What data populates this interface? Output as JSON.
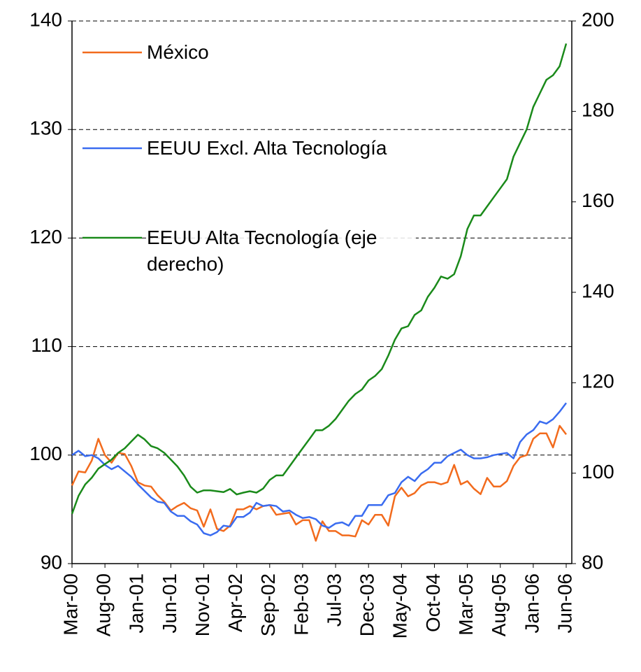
{
  "chart_data": {
    "type": "line",
    "categories": [
      "Mar-00",
      null,
      null,
      null,
      null,
      "Aug-00",
      null,
      null,
      null,
      null,
      "Jan-01",
      null,
      null,
      null,
      null,
      "Jun-01",
      null,
      null,
      null,
      null,
      "Nov-01",
      null,
      null,
      null,
      null,
      "Apr-02",
      null,
      null,
      null,
      null,
      "Sep-02",
      null,
      null,
      null,
      null,
      "Feb-03",
      null,
      null,
      null,
      null,
      "Jul-03",
      null,
      null,
      null,
      null,
      "Dec-03",
      null,
      null,
      null,
      null,
      "May-04",
      null,
      null,
      null,
      null,
      "Oct-04",
      null,
      null,
      null,
      null,
      "Mar-05",
      null,
      null,
      null,
      null,
      "Aug-05",
      null,
      null,
      null,
      null,
      "Jan-06",
      null,
      null,
      null,
      null,
      "Jun-06"
    ],
    "series": [
      {
        "name": "México",
        "color": "#f26b1d",
        "axis": "y",
        "values": [
          97.2,
          98.5,
          98.4,
          99.5,
          101.5,
          100,
          99.3,
          100.2,
          100.1,
          99,
          97.5,
          97.2,
          97.1,
          96.3,
          95.7,
          94.9,
          95.3,
          95.6,
          95.1,
          94.9,
          93.4,
          95,
          93.2,
          93,
          93.5,
          95,
          95,
          95.3,
          95,
          95.3,
          95.4,
          94.5,
          94.6,
          94.7,
          93.6,
          94,
          94,
          92.1,
          93.9,
          93,
          93,
          92.6,
          92.6,
          92.5,
          94,
          93.6,
          94.5,
          94.5,
          93.5,
          96.2,
          97,
          96.2,
          96.5,
          97.2,
          97.5,
          97.5,
          97.3,
          97.5,
          99.1,
          97.3,
          97.6,
          96.9,
          96.4,
          97.9,
          97.1,
          97.1,
          97.6,
          99,
          99.8,
          100,
          101.5,
          102,
          102,
          100.7,
          102.7,
          101.9
        ]
      },
      {
        "name": "EEUU Excl. Alta Tecnología",
        "color": "#3a6cf0",
        "axis": "y",
        "values": [
          100,
          100.4,
          99.9,
          100,
          99.7,
          99.1,
          98.7,
          99,
          98.5,
          98,
          97.3,
          96.7,
          96.1,
          95.7,
          95.6,
          94.8,
          94.4,
          94.4,
          93.9,
          93.6,
          92.8,
          92.6,
          92.9,
          93.5,
          93.4,
          94.3,
          94.3,
          94.7,
          95.6,
          95.3,
          95.4,
          95.3,
          94.8,
          94.9,
          94.5,
          94.2,
          94.3,
          94.1,
          93.5,
          93.3,
          93.7,
          93.8,
          93.5,
          94.4,
          94.4,
          95.4,
          95.4,
          95.4,
          96.3,
          96.5,
          97.5,
          98,
          97.6,
          98.3,
          98.7,
          99.3,
          99.3,
          99.9,
          100.2,
          100.5,
          100,
          99.7,
          99.7,
          99.8,
          100,
          100.1,
          100.2,
          99.7,
          101.2,
          101.9,
          102.3,
          103.1,
          102.9,
          103.3,
          104,
          104.8
        ]
      },
      {
        "name": "EEUU Alta Tecnología (eje derecho)",
        "color": "#1a8a1a",
        "axis": "y2",
        "values": [
          91,
          95,
          97.5,
          99,
          101,
          102,
          103,
          104.5,
          105.5,
          107,
          108.5,
          107.5,
          106,
          105.5,
          104.5,
          103,
          101.5,
          99.5,
          97,
          95.7,
          96.2,
          96.2,
          96,
          95.8,
          96.5,
          95.3,
          95.7,
          96,
          95.7,
          96.6,
          98.5,
          99.5,
          99.5,
          101.5,
          103.5,
          105.5,
          107.5,
          109.5,
          109.5,
          110.5,
          112,
          114,
          116,
          117.5,
          118.5,
          120.5,
          121.5,
          123,
          126,
          129.5,
          132,
          132.5,
          135,
          136,
          139,
          141,
          143.5,
          143,
          144,
          148,
          154,
          157,
          157,
          159,
          161,
          163,
          165,
          170,
          173,
          176,
          181,
          184,
          187,
          188,
          190,
          195
        ]
      }
    ],
    "ylim": [
      90,
      140
    ],
    "yticks": [
      90,
      100,
      110,
      120,
      130,
      140
    ],
    "y2lim": [
      80,
      200
    ],
    "y2ticks": [
      80,
      100,
      120,
      140,
      160,
      180,
      200
    ],
    "grid": true
  }
}
